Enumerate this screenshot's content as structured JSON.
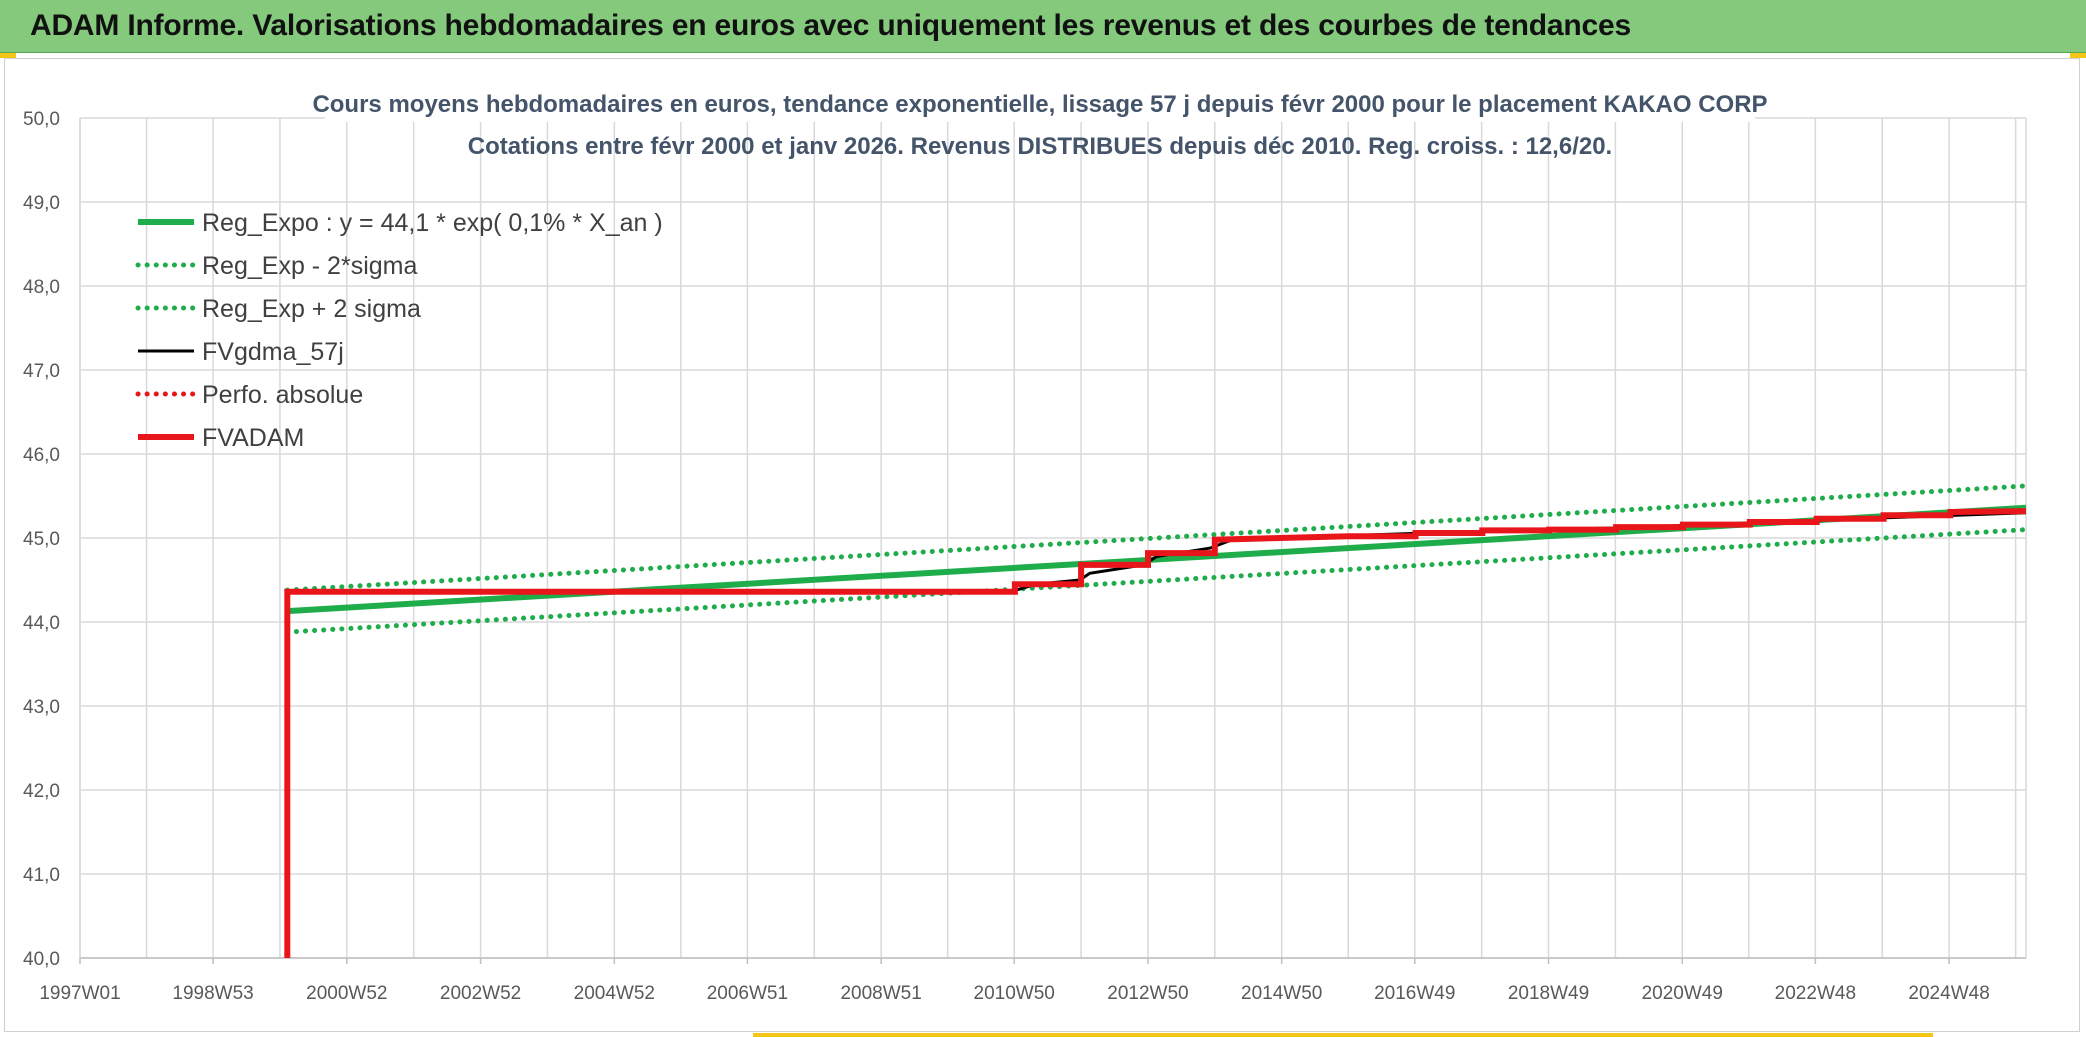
{
  "header": {
    "title": "ADAM Informe. Valorisations hebdomadaires en euros avec uniquement les revenus et des courbes de tendances"
  },
  "colors": {
    "banner": "#84c97c",
    "accent_yellow": "#f5c518",
    "green": "#1fad4b",
    "red": "#e8161b",
    "black": "#000000",
    "grid": "#d9d9d9",
    "title_text": "#44546a"
  },
  "chart_data": {
    "type": "line",
    "title": "Cours moyens hebdomadaires en euros, tendance exponentielle, lissage 57 j depuis févr 2000 pour le placement KAKAO CORP",
    "subtitle": "Cotations entre févr 2000 et janv 2026. Revenus DISTRIBUES depuis déc 2010. Reg. croiss. : 12,6/20.",
    "xlabel": "",
    "ylabel": "",
    "x_type": "year",
    "xlim": [
      1997.0,
      2026.1
    ],
    "ylim": [
      40.0,
      50.0
    ],
    "y_ticks": [
      "40,0",
      "41,0",
      "42,0",
      "43,0",
      "44,0",
      "45,0",
      "46,0",
      "47,0",
      "48,0",
      "49,0",
      "50,0"
    ],
    "x_ticks": [
      "1997W01",
      "1998W53",
      "2000W52",
      "2002W52",
      "2004W52",
      "2006W51",
      "2008W51",
      "2010W50",
      "2012W50",
      "2014W50",
      "2016W49",
      "2018W49",
      "2020W49",
      "2022W48",
      "2024W48"
    ],
    "x_tick_values": [
      1997.0,
      1998.99,
      2000.99,
      2002.99,
      2004.99,
      2006.98,
      2008.98,
      2010.97,
      2012.97,
      2014.97,
      2016.96,
      2018.96,
      2020.96,
      2022.95,
      2024.95
    ],
    "grid": true,
    "legend_position": "top-left",
    "series": [
      {
        "name": "Reg_Expo : y = 44,1 * exp( 0,1% *  X_an )",
        "style": "solid-thick",
        "color": "#1fad4b",
        "points": [
          [
            2000.1,
            44.13
          ],
          [
            2026.1,
            45.36
          ]
        ]
      },
      {
        "name": "Reg_Exp - 2*sigma",
        "style": "dotted",
        "color": "#1fad4b",
        "points": [
          [
            2000.1,
            43.88
          ],
          [
            2026.1,
            45.1
          ]
        ]
      },
      {
        "name": "Reg_Exp + 2 sigma",
        "style": "dotted",
        "color": "#1fad4b",
        "points": [
          [
            2000.1,
            44.38
          ],
          [
            2026.1,
            45.62
          ]
        ]
      },
      {
        "name": "FVgdma_57j",
        "style": "solid",
        "color": "#000000",
        "points": [
          [
            2000.1,
            44.35
          ],
          [
            2010.95,
            44.35
          ],
          [
            2011.0,
            44.38
          ],
          [
            2011.3,
            44.45
          ],
          [
            2011.95,
            44.5
          ],
          [
            2012.1,
            44.58
          ],
          [
            2012.9,
            44.68
          ],
          [
            2013.1,
            44.78
          ],
          [
            2013.9,
            44.88
          ],
          [
            2014.2,
            44.97
          ],
          [
            2016.0,
            45.03
          ],
          [
            2018.0,
            45.08
          ],
          [
            2020.0,
            45.12
          ],
          [
            2022.0,
            45.18
          ],
          [
            2024.0,
            45.24
          ],
          [
            2026.1,
            45.3
          ]
        ]
      },
      {
        "name": "Perfo. absolue",
        "style": "dotted",
        "color": "#e8161b",
        "points": []
      },
      {
        "name": "FVADAM",
        "style": "solid-thick",
        "color": "#e8161b",
        "points": [
          [
            2000.1,
            40.0
          ],
          [
            2000.1,
            44.36
          ],
          [
            2010.98,
            44.36
          ],
          [
            2010.98,
            44.45
          ],
          [
            2011.97,
            44.45
          ],
          [
            2011.97,
            44.68
          ],
          [
            2012.97,
            44.68
          ],
          [
            2012.97,
            44.82
          ],
          [
            2013.97,
            44.82
          ],
          [
            2013.97,
            44.98
          ],
          [
            2015.97,
            45.02
          ],
          [
            2016.97,
            45.02
          ],
          [
            2016.97,
            45.06
          ],
          [
            2017.97,
            45.06
          ],
          [
            2017.97,
            45.09
          ],
          [
            2018.97,
            45.09
          ],
          [
            2018.97,
            45.1
          ],
          [
            2019.97,
            45.1
          ],
          [
            2019.97,
            45.13
          ],
          [
            2020.97,
            45.13
          ],
          [
            2020.97,
            45.16
          ],
          [
            2021.97,
            45.16
          ],
          [
            2021.97,
            45.19
          ],
          [
            2022.97,
            45.19
          ],
          [
            2022.97,
            45.23
          ],
          [
            2023.97,
            45.23
          ],
          [
            2023.97,
            45.27
          ],
          [
            2024.97,
            45.27
          ],
          [
            2024.97,
            45.31
          ],
          [
            2026.1,
            45.32
          ]
        ]
      }
    ]
  }
}
